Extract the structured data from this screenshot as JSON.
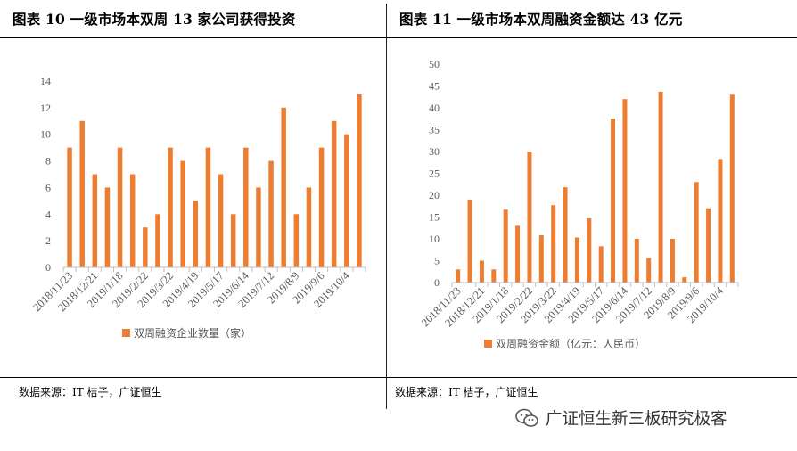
{
  "left": {
    "title": "图表 10 一级市场本双周 13 家公司获得投资",
    "source": "数据来源：IT 桔子，广证恒生"
  },
  "right": {
    "title": "图表 11 一级市场本双周融资金额达 43 亿元",
    "source": "数据来源：IT 桔子，广证恒生"
  },
  "watermark": {
    "text": "广证恒生新三板研究极客",
    "icon": "wechat-icon"
  },
  "colors": {
    "bar": "#ED7D31",
    "axis": "#BFBFBF",
    "text": "#595959"
  },
  "chart_data": [
    {
      "type": "bar",
      "title": "图表 10 一级市场本双周 13 家公司获得投资",
      "ylim": [
        0,
        14
      ],
      "yticks": [
        0,
        2,
        4,
        6,
        8,
        10,
        12,
        14
      ],
      "tick_labels": [
        "2018/11/23",
        "2018/12/21",
        "2019/1/18",
        "2019/2/22",
        "2019/3/22",
        "2019/4/19",
        "2019/5/17",
        "2019/6/14",
        "2019/7/12",
        "2019/8/9",
        "2019/9/6",
        "2019/10/4"
      ],
      "grid": false,
      "legend": "bottom",
      "series": [
        {
          "name": "双周融资企业数量（家）",
          "values": [
            9,
            11,
            7,
            6,
            9,
            7,
            3,
            4,
            9,
            8,
            5,
            9,
            7,
            4,
            9,
            6,
            8,
            12,
            4,
            6,
            9,
            11,
            10,
            13
          ]
        }
      ]
    },
    {
      "type": "bar",
      "title": "图表 11 一级市场本双周融资金额达 43 亿元",
      "ylim": [
        0,
        50
      ],
      "yticks": [
        0,
        5,
        10,
        15,
        20,
        25,
        30,
        35,
        40,
        45,
        50
      ],
      "tick_labels": [
        "2018/11/23",
        "2018/12/21",
        "2019/1/18",
        "2019/2/22",
        "2019/3/22",
        "2019/4/19",
        "2019/5/17",
        "2019/6/14",
        "2019/7/12",
        "2019/8/9",
        "2019/9/6",
        "2019/10/4"
      ],
      "grid": false,
      "legend": "bottom",
      "series": [
        {
          "name": "双周融资金额（亿元：人民币）",
          "values": [
            3,
            19,
            5,
            3,
            16.7,
            13,
            30,
            10.8,
            17.7,
            21.8,
            10.3,
            14.7,
            8.3,
            37.5,
            42,
            10,
            5.6,
            43.7,
            10,
            1.2,
            23,
            17,
            28.3,
            43
          ]
        }
      ]
    }
  ]
}
